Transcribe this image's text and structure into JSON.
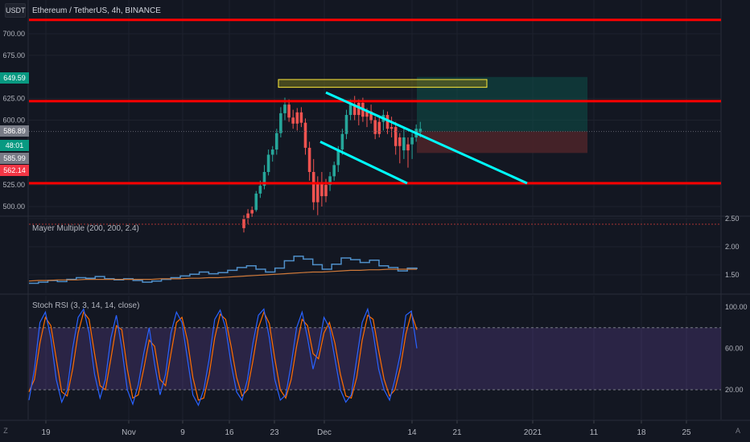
{
  "header": {
    "currency": "USDT",
    "symbol_title": "Ethereum / TetherUS, 4h, BINANCE"
  },
  "indicators": {
    "mayer_title": "Mayer Multiple (200, 200, 2.4)",
    "stoch_title": "Stoch RSI (3, 3, 14, 14, close)"
  },
  "buttons": {
    "left": "Z",
    "right": "A"
  },
  "colors": {
    "background": "#131722",
    "grid": "#1e222d",
    "support_resistance": "#ff0000",
    "channel": "#00ffff",
    "supply_zone": "#ffeb3b",
    "target_zone": "#0d5149",
    "stop_zone": "#4a2429",
    "candle_up": "#26a69a",
    "candle_down": "#ef5350",
    "mayer_line": "#4f8fc9",
    "mayer_ma": "#d07a3a",
    "stoch_k": "#2962ff",
    "stoch_d": "#ff6d00",
    "stoch_band": "#7e57c2"
  },
  "chart_data": [
    {
      "type": "candlestick",
      "title": "Ethereum / TetherUS, 4h, BINANCE",
      "ylim": [
        480,
        730
      ],
      "y_ticks": [
        "700.00",
        "675.00",
        "625.00",
        "600.00",
        "525.00",
        "500.00"
      ],
      "x_ticks": [
        "19",
        "Nov",
        "9",
        "16",
        "23",
        "Dec",
        "14",
        "21",
        "2021",
        "11",
        "18",
        "25"
      ],
      "price_labels": [
        {
          "value": "649.59",
          "color": "#089981"
        },
        {
          "value": "586.89",
          "color": "#787b86"
        },
        {
          "value": "48:01",
          "color": "#089981"
        },
        {
          "value": "585.99",
          "color": "#787b86"
        },
        {
          "value": "562.14",
          "color": "#f23645"
        }
      ],
      "levels": [
        716,
        622,
        527
      ],
      "channel": {
        "upper": [
          {
            "date": "Dec 2",
            "price": 632
          },
          {
            "date": "Dec 31",
            "price": 527
          }
        ],
        "lower": [
          {
            "date": "Dec 1",
            "price": 575
          },
          {
            "date": "Dec 11",
            "price": 527
          }
        ]
      },
      "zones": {
        "supply": {
          "from": "Nov 24",
          "to": "Dec 28",
          "price_low": 638,
          "price_high": 647
        },
        "target": {
          "from": "Dec 15",
          "to": "Jan 4",
          "price_low": 587,
          "price_high": 650
        },
        "stop": {
          "from": "Dec 15",
          "to": "Jan 4",
          "price_low": 562,
          "price_high": 587
        }
      },
      "last_price": 586.89,
      "candles": [
        [
          0,
          475,
          490,
          470,
          486
        ],
        [
          0,
          486,
          497,
          480,
          492
        ],
        [
          0,
          492,
          500,
          488,
          496
        ],
        [
          1,
          496,
          518,
          494,
          515
        ],
        [
          1,
          515,
          530,
          510,
          524
        ],
        [
          1,
          524,
          548,
          520,
          540
        ],
        [
          1,
          540,
          566,
          536,
          560
        ],
        [
          1,
          560,
          570,
          552,
          566
        ],
        [
          1,
          566,
          590,
          560,
          585
        ],
        [
          1,
          585,
          615,
          580,
          608
        ],
        [
          1,
          608,
          626,
          600,
          618
        ],
        [
          0,
          618,
          624,
          598,
          603
        ],
        [
          0,
          603,
          612,
          590,
          596
        ],
        [
          0,
          596,
          614,
          588,
          609
        ],
        [
          0,
          609,
          615,
          592,
          597
        ],
        [
          0,
          597,
          602,
          560,
          568
        ],
        [
          0,
          568,
          575,
          530,
          540
        ],
        [
          0,
          540,
          555,
          496,
          505
        ],
        [
          0,
          505,
          535,
          490,
          528
        ],
        [
          0,
          528,
          540,
          500,
          512
        ],
        [
          0,
          512,
          532,
          505,
          525
        ],
        [
          1,
          525,
          540,
          518,
          535
        ],
        [
          1,
          535,
          552,
          530,
          548
        ],
        [
          1,
          548,
          570,
          540,
          566
        ],
        [
          1,
          566,
          590,
          560,
          584
        ],
        [
          1,
          584,
          612,
          578,
          606
        ],
        [
          1,
          606,
          624,
          600,
          618
        ],
        [
          0,
          618,
          628,
          600,
          606
        ],
        [
          0,
          606,
          624,
          594,
          620
        ],
        [
          0,
          620,
          626,
          598,
          604
        ],
        [
          0,
          604,
          614,
          592,
          610
        ],
        [
          0,
          610,
          618,
          596,
          600
        ],
        [
          0,
          600,
          604,
          578,
          584
        ],
        [
          0,
          584,
          604,
          580,
          598
        ],
        [
          1,
          598,
          612,
          588,
          606
        ],
        [
          0,
          606,
          610,
          584,
          590
        ],
        [
          0,
          590,
          604,
          580,
          592
        ],
        [
          0,
          592,
          598,
          560,
          570
        ],
        [
          0,
          570,
          585,
          550,
          580
        ],
        [
          1,
          580,
          590,
          555,
          565
        ],
        [
          0,
          565,
          580,
          545,
          572
        ],
        [
          1,
          572,
          585,
          555,
          580
        ],
        [
          1,
          580,
          595,
          575,
          590
        ],
        [
          1,
          590,
          598,
          580,
          586
        ]
      ]
    },
    {
      "type": "line",
      "title": "Mayer Multiple (200, 200, 2.4)",
      "ylim": [
        1.3,
        2.55
      ],
      "y_ticks": [
        "2.50",
        "2.00",
        "1.50"
      ],
      "threshold": 2.4,
      "series": [
        {
          "name": "Mayer Multiple",
          "values": [
            1.35,
            1.37,
            1.4,
            1.38,
            1.42,
            1.45,
            1.44,
            1.47,
            1.43,
            1.41,
            1.43,
            1.4,
            1.37,
            1.39,
            1.42,
            1.45,
            1.48,
            1.51,
            1.55,
            1.52,
            1.54,
            1.58,
            1.63,
            1.66,
            1.6,
            1.55,
            1.62,
            1.75,
            1.83,
            1.78,
            1.68,
            1.6,
            1.69,
            1.8,
            1.77,
            1.72,
            1.76,
            1.66,
            1.63,
            1.57,
            1.62,
            1.6
          ]
        },
        {
          "name": "200 MA",
          "values": [
            1.39,
            1.4,
            1.4,
            1.41,
            1.41,
            1.41,
            1.42,
            1.42,
            1.42,
            1.42,
            1.42,
            1.42,
            1.42,
            1.42,
            1.43,
            1.43,
            1.43,
            1.44,
            1.44,
            1.45,
            1.45,
            1.46,
            1.47,
            1.48,
            1.49,
            1.5,
            1.51,
            1.52,
            1.53,
            1.54,
            1.55,
            1.55,
            1.56,
            1.57,
            1.58,
            1.58,
            1.59,
            1.59,
            1.6,
            1.6,
            1.6,
            1.6
          ]
        }
      ]
    },
    {
      "type": "line",
      "title": "Stoch RSI (3, 3, 14, 14, close)",
      "ylim": [
        0,
        110
      ],
      "y_ticks": [
        "100.00",
        "60.00",
        "20.00"
      ],
      "bands": [
        20,
        80
      ],
      "series": [
        {
          "name": "%K",
          "values": [
            10,
            40,
            85,
            95,
            70,
            30,
            8,
            20,
            60,
            90,
            98,
            75,
            35,
            12,
            30,
            70,
            92,
            60,
            20,
            6,
            25,
            55,
            80,
            45,
            15,
            35,
            75,
            95,
            85,
            50,
            15,
            5,
            20,
            50,
            88,
            97,
            80,
            45,
            18,
            10,
            30,
            65,
            92,
            98,
            70,
            30,
            10,
            15,
            45,
            80,
            95,
            70,
            40,
            60,
            90,
            80,
            50,
            20,
            8,
            15,
            50,
            85,
            98,
            75,
            40,
            20,
            10,
            30,
            55,
            92,
            96,
            60
          ]
        },
        {
          "name": "%D",
          "values": [
            18,
            30,
            65,
            90,
            82,
            50,
            18,
            14,
            40,
            75,
            95,
            88,
            55,
            24,
            20,
            50,
            82,
            78,
            40,
            12,
            15,
            40,
            68,
            62,
            30,
            24,
            55,
            85,
            90,
            68,
            32,
            10,
            12,
            35,
            70,
            93,
            88,
            62,
            32,
            14,
            20,
            48,
            80,
            95,
            84,
            50,
            20,
            12,
            30,
            62,
            88,
            82,
            55,
            50,
            75,
            85,
            65,
            35,
            14,
            12,
            32,
            68,
            92,
            88,
            58,
            30,
            14,
            20,
            42,
            74,
            94,
            78
          ]
        }
      ]
    }
  ]
}
